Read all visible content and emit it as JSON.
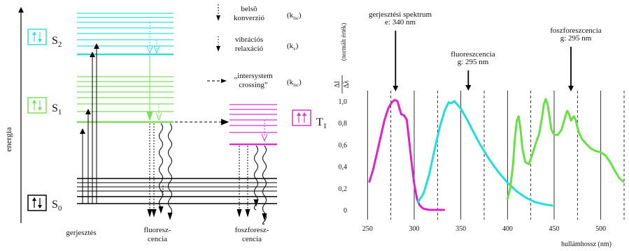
{
  "jablonski": {
    "energy_label": "energia",
    "states": {
      "s0": "S",
      "s0_sub": "0",
      "s1": "S",
      "s1_sub": "1",
      "s2": "S",
      "s2_sub": "2",
      "t1": "T",
      "t1_sub": "1"
    },
    "legend": {
      "internal_conversion": [
        "belsô",
        "konverzió"
      ],
      "internal_conversion_k": "(k",
      "internal_conversion_k_sub": "isc",
      "internal_conversion_k_end": ")",
      "vibrational_relaxation": [
        "vibrációs",
        "relaxáció"
      ],
      "vibrational_relaxation_k": "(k",
      "vibrational_relaxation_k_sub": "v",
      "vibrational_relaxation_k_end": ")",
      "intersystem_crossing": [
        "„intersystem",
        "crossing”"
      ],
      "intersystem_crossing_k": "(k",
      "intersystem_crossing_k_sub": "isc",
      "intersystem_crossing_k_end": ")"
    },
    "bottom_labels": {
      "excitation": "gerjesztés",
      "fluorescence": [
        "fluoresz-",
        "cencia"
      ],
      "phosphorescence": [
        "foszforesz-",
        "cencia"
      ]
    },
    "colors": {
      "s2": "#33dddd",
      "s1": "#77e055",
      "t1": "#d633cc",
      "s0": "#000000"
    }
  },
  "chart_data": {
    "type": "line",
    "xlabel": "hullámhossz (nm)",
    "ylabel_fraction_num": "ΔI",
    "ylabel_fraction_den": "Δλ",
    "ylabel_note": "(normált érték)",
    "xlim": [
      240,
      525
    ],
    "ylim": [
      0,
      1.0
    ],
    "xticks": [
      250,
      300,
      350,
      400,
      450,
      500
    ],
    "xtick_labels": [
      "250",
      "300",
      "350",
      "400",
      "450",
      "500"
    ],
    "yticks": [
      0,
      0.2,
      0.4,
      0.6,
      0.8,
      1.0
    ],
    "ytick_labels": [
      "0",
      "0,2",
      "0,4",
      "0,6",
      "0,8",
      "1,0"
    ],
    "solid_gridlines": [
      250,
      300,
      350,
      400,
      450,
      500
    ],
    "dashed_gridlines": [
      275,
      325,
      375,
      425,
      475,
      525
    ],
    "annotations": [
      {
        "lines": [
          "gerjesztési  spektrum",
          "e: 340 nm"
        ],
        "x": 280
      },
      {
        "lines": [
          "fluoreszcencia",
          "g: 295 nm"
        ],
        "x": 358
      },
      {
        "lines": [
          "foszforeszcencia",
          "g: 295 nm"
        ],
        "x": 468
      }
    ],
    "series": [
      {
        "color": "#dd22cc",
        "points": [
          [
            252,
            0.26
          ],
          [
            256,
            0.37
          ],
          [
            260,
            0.52
          ],
          [
            264,
            0.67
          ],
          [
            268,
            0.82
          ],
          [
            272,
            0.93
          ],
          [
            276,
            0.99
          ],
          [
            279,
            1.01
          ],
          [
            282,
            1.0
          ],
          [
            284,
            0.94
          ],
          [
            286,
            0.88
          ],
          [
            289,
            0.87
          ],
          [
            292,
            0.83
          ],
          [
            294,
            0.68
          ],
          [
            297,
            0.45
          ],
          [
            300,
            0.24
          ],
          [
            303,
            0.1
          ],
          [
            306,
            0.04
          ],
          [
            310,
            0.01
          ],
          [
            316,
            0.0
          ],
          [
            325,
            0.0
          ],
          [
            332,
            0.0
          ]
        ]
      },
      {
        "color": "#22dddd",
        "points": [
          [
            304,
            0.07
          ],
          [
            310,
            0.15
          ],
          [
            316,
            0.32
          ],
          [
            322,
            0.56
          ],
          [
            328,
            0.78
          ],
          [
            333,
            0.92
          ],
          [
            337,
            0.99
          ],
          [
            340,
            0.98
          ],
          [
            343,
            1.0
          ],
          [
            346,
            0.97
          ],
          [
            350,
            0.93
          ],
          [
            356,
            0.84
          ],
          [
            362,
            0.74
          ],
          [
            370,
            0.61
          ],
          [
            380,
            0.47
          ],
          [
            390,
            0.35
          ],
          [
            400,
            0.25
          ],
          [
            410,
            0.17
          ],
          [
            420,
            0.11
          ],
          [
            430,
            0.07
          ],
          [
            440,
            0.05
          ],
          [
            448,
            0.04
          ]
        ]
      },
      {
        "color": "#66e044",
        "points": [
          [
            400,
            0.1
          ],
          [
            403,
            0.2
          ],
          [
            406,
            0.42
          ],
          [
            408,
            0.66
          ],
          [
            410,
            0.82
          ],
          [
            412,
            0.86
          ],
          [
            414,
            0.74
          ],
          [
            416,
            0.56
          ],
          [
            419,
            0.44
          ],
          [
            423,
            0.42
          ],
          [
            427,
            0.52
          ],
          [
            431,
            0.63
          ],
          [
            434,
            0.7
          ],
          [
            437,
            0.85
          ],
          [
            439,
            0.97
          ],
          [
            441,
            1.02
          ],
          [
            443,
            0.97
          ],
          [
            445,
            0.86
          ],
          [
            447,
            0.74
          ],
          [
            450,
            0.69
          ],
          [
            454,
            0.69
          ],
          [
            458,
            0.74
          ],
          [
            462,
            0.86
          ],
          [
            464,
            0.91
          ],
          [
            466,
            0.88
          ],
          [
            468,
            0.82
          ],
          [
            471,
            0.86
          ],
          [
            473,
            0.83
          ],
          [
            476,
            0.72
          ],
          [
            480,
            0.65
          ],
          [
            485,
            0.6
          ],
          [
            490,
            0.56
          ],
          [
            495,
            0.54
          ],
          [
            500,
            0.53
          ],
          [
            505,
            0.5
          ],
          [
            510,
            0.44
          ],
          [
            515,
            0.36
          ],
          [
            520,
            0.29
          ],
          [
            524,
            0.26
          ]
        ]
      }
    ]
  }
}
